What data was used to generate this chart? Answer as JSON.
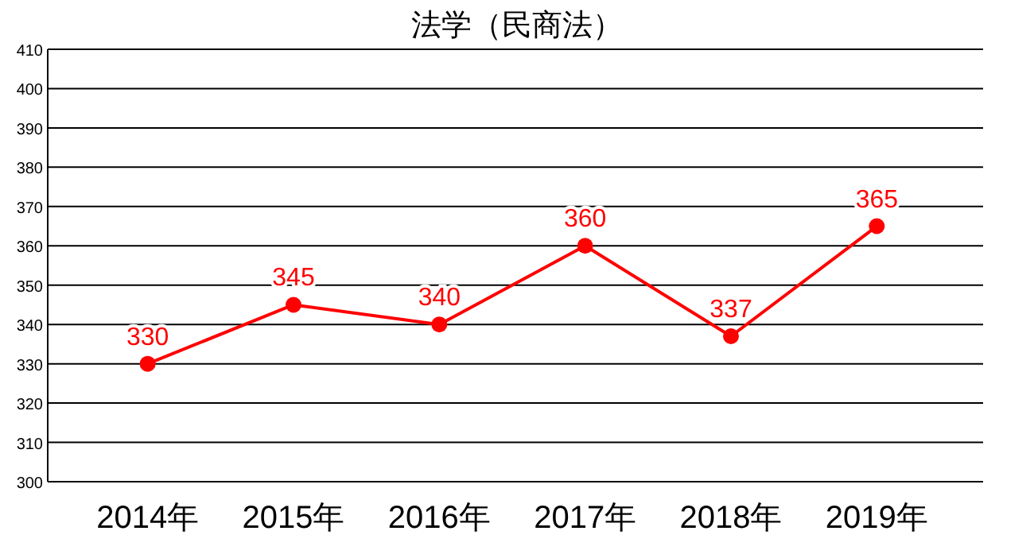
{
  "chart_data": {
    "type": "line",
    "title": "法学（民商法）",
    "categories": [
      "2014年",
      "2015年",
      "2016年",
      "2017年",
      "2018年",
      "2019年"
    ],
    "series": [
      {
        "color": "#ff0000",
        "values": [
          330,
          345,
          340,
          360,
          337,
          365
        ]
      }
    ],
    "ylim": [
      300,
      410
    ],
    "yticks": [
      300,
      310,
      320,
      330,
      340,
      350,
      360,
      370,
      380,
      390,
      400,
      410
    ],
    "grid": "y",
    "marker": "circle",
    "line_style": "solid",
    "data_labels": true
  }
}
